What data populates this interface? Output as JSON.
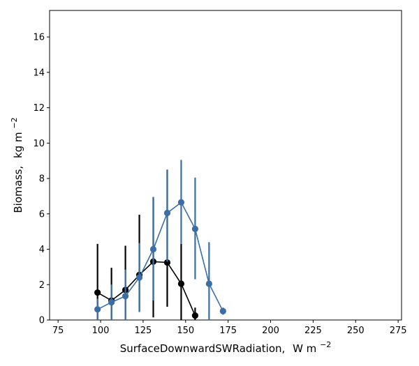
{
  "chart_data": {
    "type": "line",
    "title": "",
    "xlabel": "SurfaceDownwardSWRadiation,",
    "xlabel_unit": "W m",
    "xlabel_exp": "−2",
    "ylabel": "Biomass,",
    "ylabel_unit": "kg m",
    "ylabel_exp": "−2",
    "xlim": [
      70,
      277
    ],
    "ylim": [
      0,
      17.5
    ],
    "xticks": [
      75,
      100,
      125,
      150,
      175,
      200,
      225,
      250,
      275
    ],
    "yticks": [
      0,
      2,
      4,
      6,
      8,
      10,
      12,
      14,
      16
    ],
    "grid": false,
    "legend": "none",
    "series": [
      {
        "color": "#000000",
        "x": [
          98.2,
          106.4,
          114.6,
          122.8,
          131.0,
          139.2,
          147.4,
          155.6
        ],
        "y": [
          1.55,
          1.1,
          1.7,
          2.55,
          3.3,
          3.25,
          2.05,
          0.25
        ],
        "err_low": [
          0.0,
          0.0,
          0.0,
          0.5,
          0.15,
          0.75,
          0.0,
          0.0
        ],
        "err_high": [
          4.3,
          2.95,
          4.2,
          5.95,
          6.95,
          8.5,
          4.3,
          0.7
        ]
      },
      {
        "color": "#3a6ea5",
        "x": [
          98.2,
          106.4,
          114.6,
          122.8,
          131.0,
          139.2,
          147.4,
          155.6,
          163.8,
          172.0
        ],
        "y": [
          0.6,
          1.0,
          1.35,
          2.4,
          4.0,
          6.05,
          6.65,
          5.15,
          2.05,
          0.5
        ],
        "err_low": [
          0.0,
          0.0,
          0.0,
          0.45,
          1.1,
          3.3,
          4.3,
          2.3,
          0.0,
          0.3
        ],
        "err_high": [
          1.2,
          2.0,
          2.85,
          4.35,
          6.95,
          8.5,
          9.05,
          8.05,
          4.4,
          0.7
        ]
      }
    ]
  }
}
